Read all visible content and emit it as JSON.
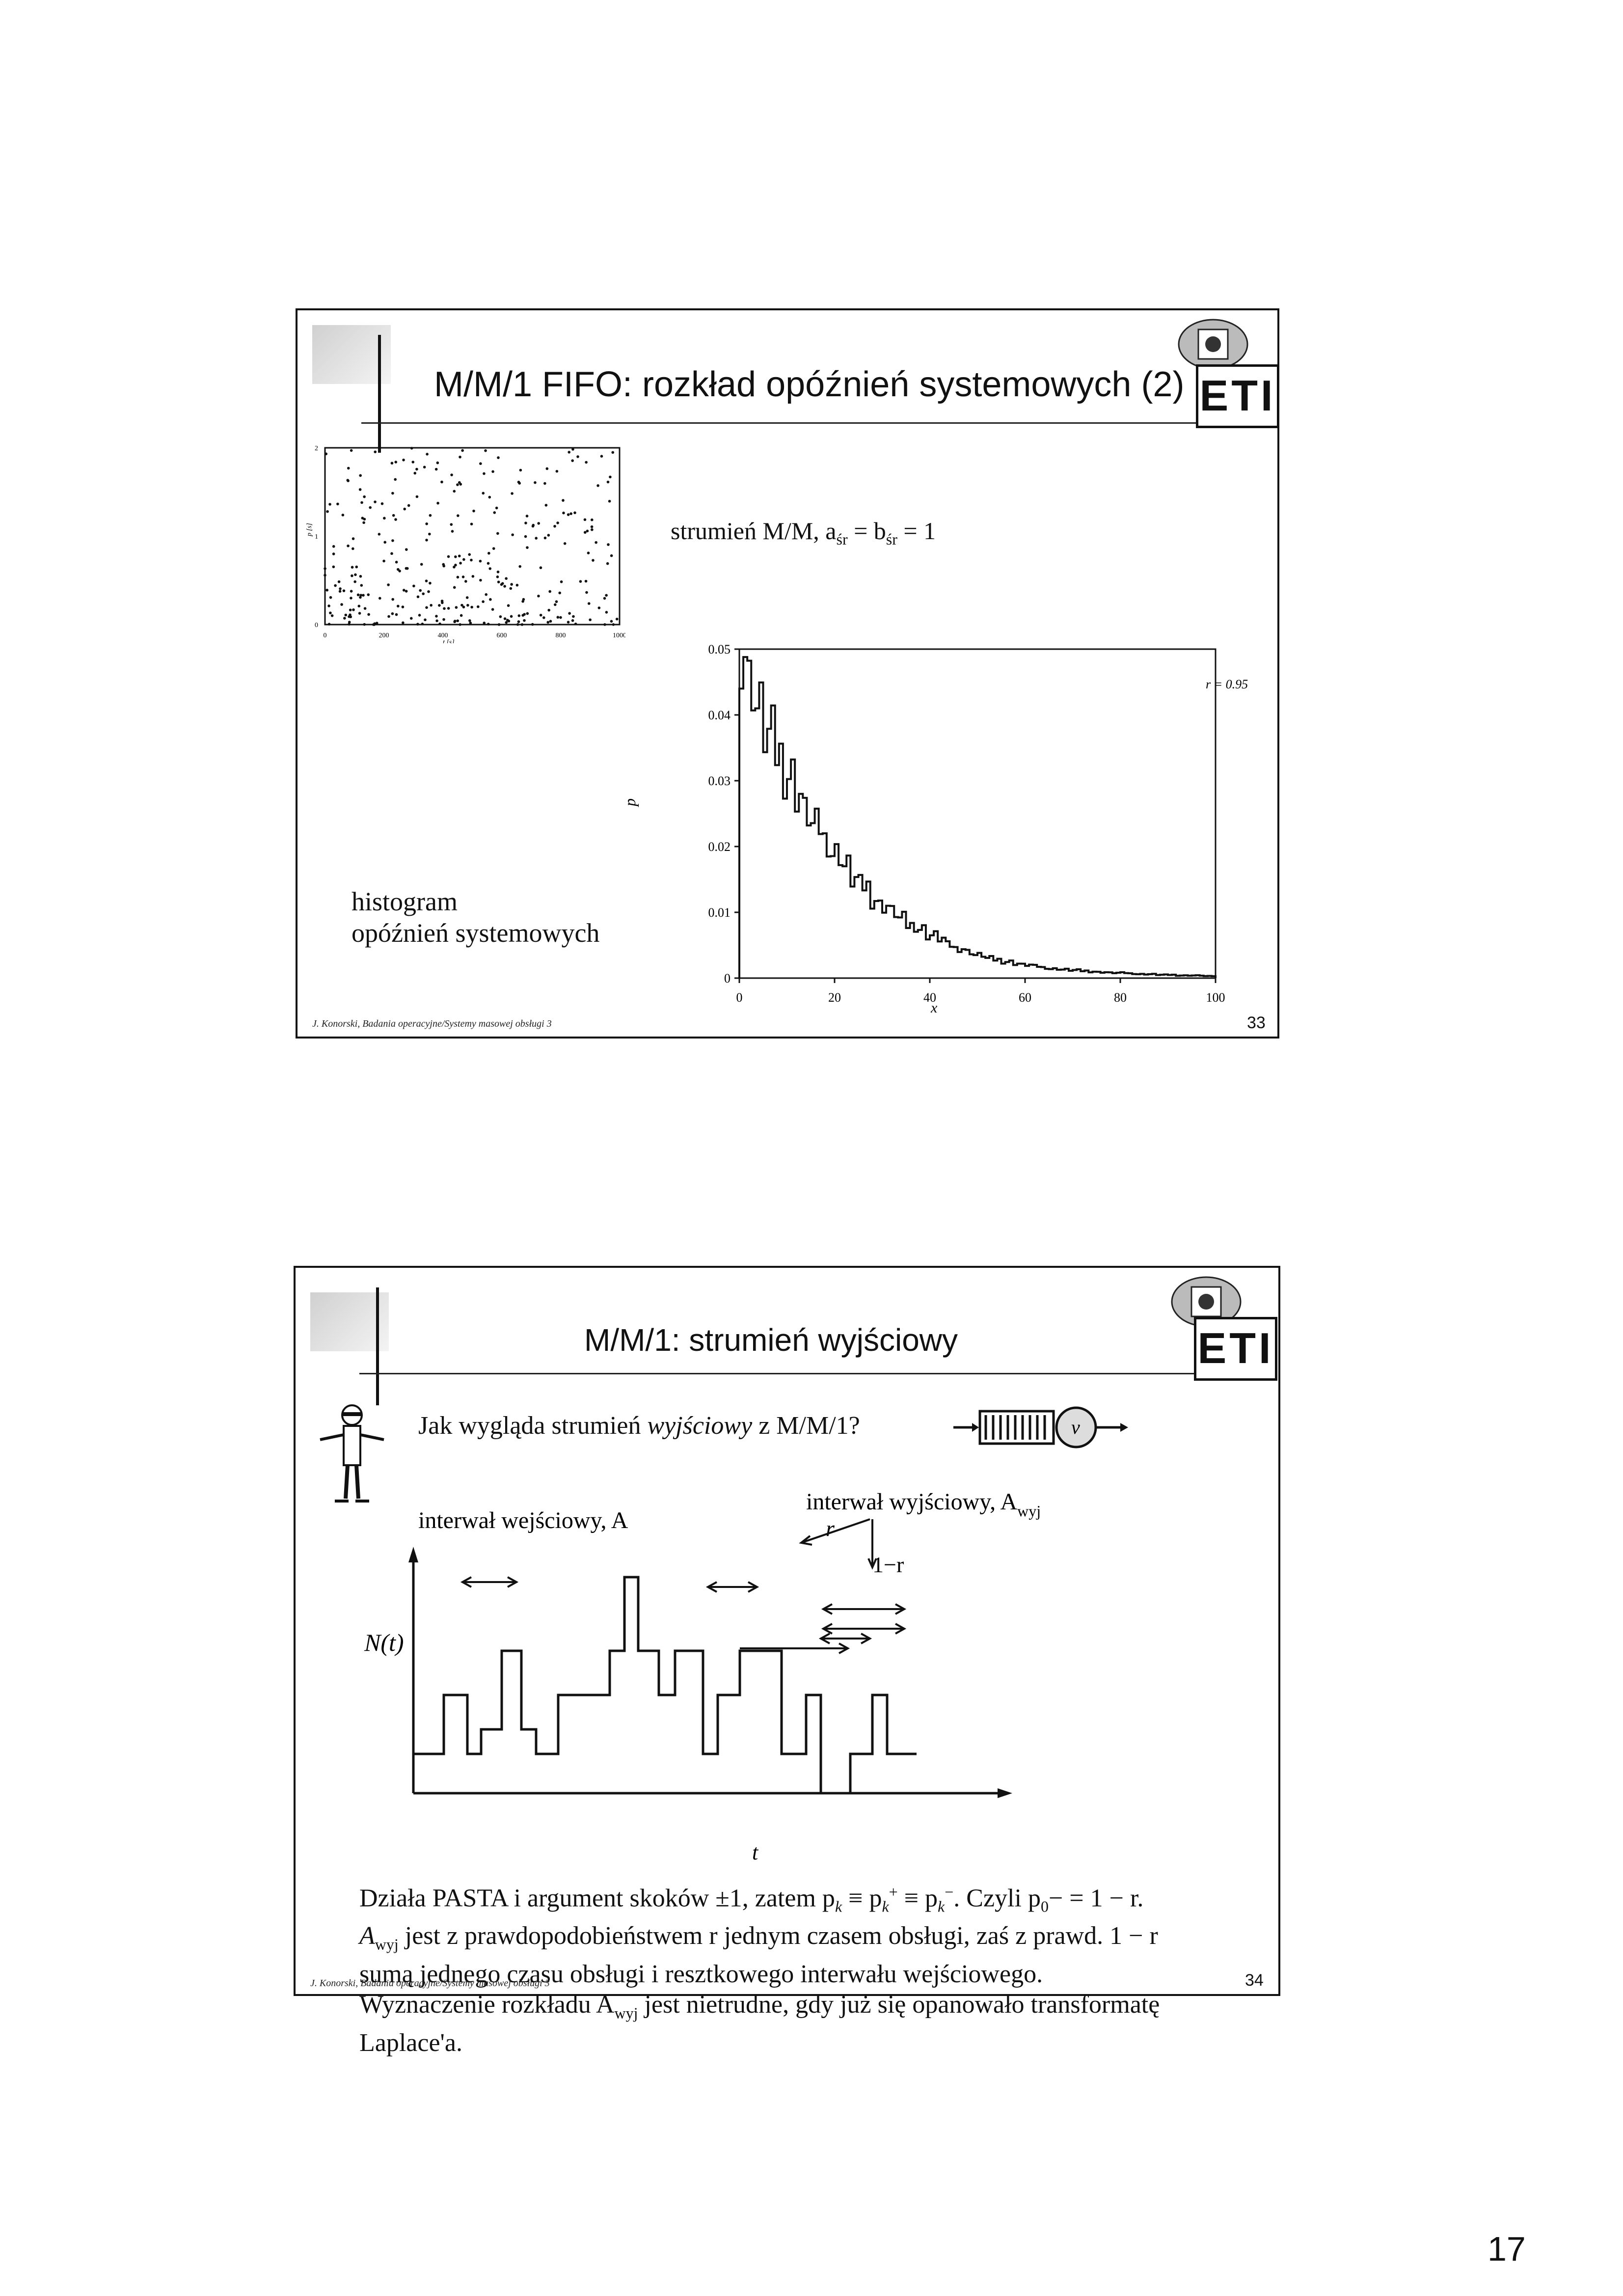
{
  "slide1": {
    "title": "M/M/1 FIFO: rozkład opóźnień systemowych (2)",
    "stream_label": "strumień M/M, a",
    "stream_sub_a": "śr",
    "stream_mid": " = b",
    "stream_sub_b": "śr",
    "stream_end": " = 1",
    "histogram_label_line1": "histogram",
    "histogram_label_line2": "opóźnień systemowych",
    "footer": "J. Konorski, Badania operacyjne/Systemy masowej obsługi 3",
    "page_number": "33",
    "logo_text": "ETI"
  },
  "scatter_chart": {
    "type": "scatter",
    "x_ticks": [
      "0",
      "200",
      "400",
      "600",
      "800",
      "1000"
    ],
    "y_ticks": [
      "0",
      "1",
      "2"
    ],
    "xlabel": "t [s]",
    "ylabel": "p [s]",
    "xlim": [
      0,
      1000
    ],
    "ylim": [
      0,
      2
    ]
  },
  "chart_data": {
    "type": "bar",
    "title": "",
    "xlabel": "x",
    "ylabel": "p",
    "annotation": "r = 0.95",
    "x_ticks": [
      "0",
      "20",
      "40",
      "60",
      "80",
      "100"
    ],
    "y_ticks": [
      "0",
      "0.01",
      "0.02",
      "0.03",
      "0.04",
      "0.05"
    ],
    "xlim": [
      0,
      100
    ],
    "ylim": [
      0,
      0.05
    ],
    "x": [
      0,
      2,
      4,
      6,
      8,
      10,
      12,
      14,
      16,
      18,
      20,
      22,
      24,
      26,
      28,
      30,
      32,
      34,
      36,
      38,
      40,
      42,
      44,
      46,
      48,
      50,
      52,
      54,
      56,
      58,
      60,
      62,
      64,
      66,
      68,
      70,
      72,
      74,
      76,
      78,
      80,
      82,
      84,
      86,
      88,
      90,
      92,
      94,
      96,
      98,
      100
    ],
    "values": [
      0.05,
      0.045,
      0.041,
      0.037,
      0.034,
      0.031,
      0.028,
      0.025,
      0.023,
      0.021,
      0.019,
      0.017,
      0.015,
      0.014,
      0.012,
      0.011,
      0.01,
      0.009,
      0.008,
      0.0075,
      0.0065,
      0.006,
      0.005,
      0.0045,
      0.004,
      0.0035,
      0.003,
      0.0028,
      0.0025,
      0.0022,
      0.002,
      0.0018,
      0.0016,
      0.0014,
      0.0013,
      0.0012,
      0.0011,
      0.001,
      0.0009,
      0.0008,
      0.0008,
      0.0007,
      0.0006,
      0.0006,
      0.0005,
      0.0005,
      0.0004,
      0.0004,
      0.0004,
      0.0003,
      0.0003
    ]
  },
  "slide2": {
    "title": "M/M/1: strumień wyjściowy",
    "question_prefix": "Jak wygląda strumień ",
    "question_italic": "wyjściowy",
    "question_suffix": " z M/M/1?",
    "server_symbol": "ν",
    "input_interval_label": "interwał wejściowy, A",
    "output_interval_label": "interwał wyjściowy, A",
    "output_interval_sub": "wyj",
    "prob_r": "r",
    "prob_1_minus_r": "1−r",
    "n_of_t": "N(t)",
    "t_axis": "t",
    "para1": "Działa PASTA i argument skoków ±1, zatem p",
    "para1_k1": "k",
    "para1_eq1": " ≡ p",
    "para1_k2": "k",
    "para1_plus": "+",
    "para1_eq2": " ≡ p",
    "para1_k3": "k",
    "para1_minus": "−",
    "para1_czyli": ". Czyli p",
    "para1_zero": "0",
    "para1_end": "− = 1 − r.",
    "para2_line1_a": "A",
    "para2_line1_sub": "wyj",
    "para2_line1_b": " jest z prawdopodobieństwem r jednym czasem obsługi, zaś z  prawd. 1 − r",
    "para2_line2": "sumą jednego czasu obsługi i resztkowego interwału wejściowego.",
    "para3_a": "Wyznaczenie rozkładu A",
    "para3_sub": "wyj",
    "para3_b": " jest nietrudne, gdy już się opanowało transformatę",
    "para3_line2": "Laplace'a.",
    "footer": "J. Konorski, Badania operacyjne/Systemy masowej obsługi 3",
    "page_number": "34",
    "logo_text": "ETI"
  },
  "sheet_number": "17"
}
